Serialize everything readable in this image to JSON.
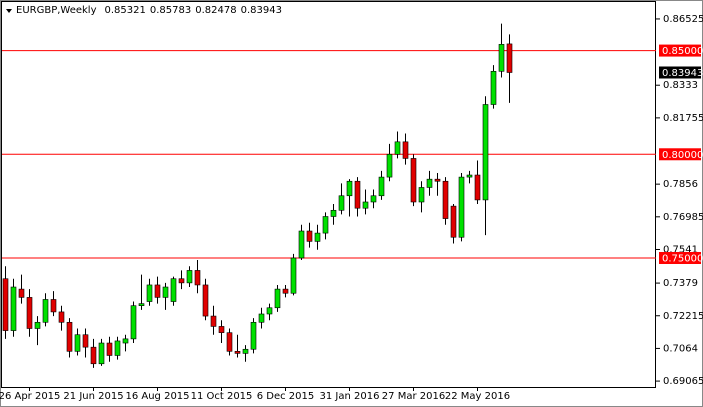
{
  "chart_data": {
    "type": "candlestick",
    "title": "EURGBP,Weekly",
    "categories": [
      null,
      null,
      null,
      "26 Apr 2015",
      null,
      null,
      null,
      null,
      null,
      null,
      null,
      "21 Jun 2015",
      null,
      null,
      null,
      null,
      null,
      null,
      null,
      "16 Aug 2015",
      null,
      null,
      null,
      null,
      null,
      null,
      null,
      "11 Oct 2015",
      null,
      null,
      null,
      null,
      null,
      null,
      null,
      "6 Dec 2015",
      null,
      null,
      null,
      null,
      null,
      null,
      null,
      "31 Jan 2016",
      null,
      null,
      null,
      null,
      null,
      null,
      null,
      "27 Mar 2016",
      null,
      null,
      null,
      null,
      null,
      null,
      null,
      "22 May 2016",
      null,
      null,
      null,
      null
    ],
    "open": [
      0.74,
      0.715,
      0.735,
      0.731,
      0.716,
      0.719,
      0.73,
      0.724,
      0.719,
      0.705,
      0.713,
      0.707,
      0.699,
      0.709,
      0.703,
      0.709,
      0.711,
      0.727,
      0.729,
      0.737,
      0.731,
      0.729,
      0.74,
      0.738,
      0.744,
      0.737,
      0.722,
      0.717,
      0.714,
      0.705,
      0.704,
      0.706,
      0.719,
      0.723,
      0.726,
      0.735,
      0.733,
      0.75,
      0.763,
      0.758,
      0.762,
      0.77,
      0.773,
      0.78,
      0.787,
      0.774,
      0.777,
      0.78,
      0.789,
      0.8,
      0.806,
      0.798,
      0.777,
      0.784,
      0.788,
      0.787,
      0.775,
      0.76,
      0.789,
      0.79,
      0.778,
      0.824,
      0.84,
      0.85321
    ],
    "high": [
      0.746,
      0.74,
      0.742,
      0.735,
      0.722,
      0.733,
      0.734,
      0.727,
      0.721,
      0.716,
      0.716,
      0.711,
      0.711,
      0.712,
      0.712,
      0.713,
      0.729,
      0.742,
      0.74,
      0.741,
      0.738,
      0.741,
      0.744,
      0.746,
      0.749,
      0.74,
      0.727,
      0.72,
      0.716,
      0.713,
      0.708,
      0.721,
      0.726,
      0.728,
      0.737,
      0.737,
      0.752,
      0.766,
      0.767,
      0.766,
      0.772,
      0.776,
      0.786,
      0.788,
      0.789,
      0.783,
      0.783,
      0.792,
      0.805,
      0.811,
      0.81,
      0.8,
      0.787,
      0.792,
      0.791,
      0.789,
      0.776,
      0.791,
      0.792,
      0.797,
      0.828,
      0.843,
      0.863,
      0.85783
    ],
    "low": [
      0.711,
      0.712,
      0.728,
      0.712,
      0.708,
      0.717,
      0.722,
      0.715,
      0.702,
      0.703,
      0.702,
      0.697,
      0.698,
      0.7,
      0.701,
      0.705,
      0.709,
      0.725,
      0.727,
      0.728,
      0.725,
      0.727,
      0.735,
      0.736,
      0.733,
      0.72,
      0.713,
      0.709,
      0.703,
      0.702,
      0.7,
      0.704,
      0.716,
      0.72,
      0.724,
      0.731,
      0.732,
      0.749,
      0.755,
      0.754,
      0.759,
      0.766,
      0.771,
      0.77,
      0.77,
      0.771,
      0.774,
      0.778,
      0.787,
      0.798,
      0.795,
      0.775,
      0.772,
      0.78,
      0.78,
      0.766,
      0.757,
      0.758,
      0.786,
      0.776,
      0.761,
      0.822,
      0.837,
      0.82478
    ],
    "close": [
      0.715,
      0.736,
      0.731,
      0.716,
      0.719,
      0.73,
      0.724,
      0.719,
      0.705,
      0.713,
      0.707,
      0.699,
      0.709,
      0.703,
      0.71,
      0.711,
      0.727,
      0.728,
      0.737,
      0.731,
      0.736,
      0.74,
      0.738,
      0.744,
      0.737,
      0.722,
      0.717,
      0.714,
      0.705,
      0.704,
      0.706,
      0.719,
      0.723,
      0.726,
      0.735,
      0.733,
      0.75,
      0.763,
      0.758,
      0.762,
      0.77,
      0.773,
      0.78,
      0.787,
      0.774,
      0.777,
      0.78,
      0.789,
      0.8,
      0.806,
      0.798,
      0.777,
      0.784,
      0.788,
      0.787,
      0.769,
      0.76,
      0.789,
      0.79,
      0.778,
      0.824,
      0.84,
      0.853,
      0.83943
    ],
    "up_color": "#00e000",
    "down_color": "#e00000",
    "ylim": [
      0.6878,
      0.8739
    ],
    "yticks": [
      0.86525,
      0.8333,
      0.81755,
      0.7856,
      0.76985,
      0.7541,
      0.7379,
      0.72215,
      0.7064,
      0.69065
    ],
    "ytick_labels_override": null,
    "hlines": [
      {
        "value": 0.85,
        "label": "0.85000"
      },
      {
        "value": 0.8,
        "label": "0.80000"
      },
      {
        "value": 0.75,
        "label": "0.75000"
      }
    ],
    "hline_color": "#ff0000"
  }
}
